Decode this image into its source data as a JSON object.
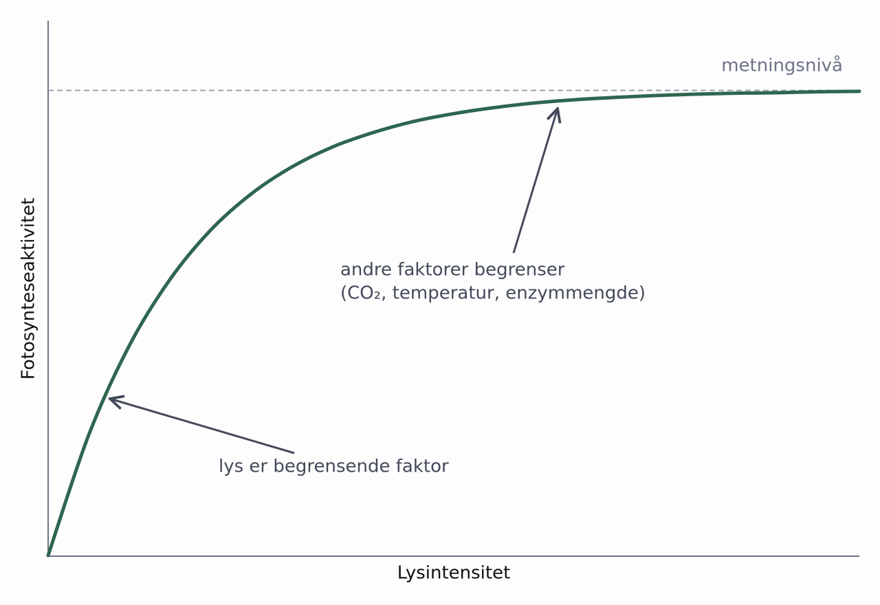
{
  "chart_data": {
    "type": "line",
    "x_label": "Lysintensitet",
    "y_label": "Fotosynteseaktivitet",
    "x": [
      0,
      0.5,
      1,
      1.5,
      2,
      2.5,
      3,
      3.5,
      4,
      4.5,
      5,
      5.5,
      6,
      6.5,
      7,
      7.5,
      8,
      8.5,
      9,
      9.5,
      10
    ],
    "series": [
      {
        "color": "#2e6650",
        "values": [
          0,
          0.259,
          0.451,
          0.593,
          0.699,
          0.777,
          0.835,
          0.878,
          0.909,
          0.933,
          0.95,
          0.963,
          0.973,
          0.98,
          0.985,
          0.989,
          0.992,
          0.994,
          0.995,
          0.997,
          0.998
        ]
      }
    ],
    "xlim": [
      0,
      10
    ],
    "ylim": [
      0,
      1.15
    ],
    "reference": {
      "value": 1,
      "label": "metningsnivå",
      "color": "#9aa5ae"
    },
    "annotations": [
      "lys er begrensende faktor",
      "andre faktorer begrenser",
      "(CO₂, temperatur, enzymmengde)"
    ]
  }
}
